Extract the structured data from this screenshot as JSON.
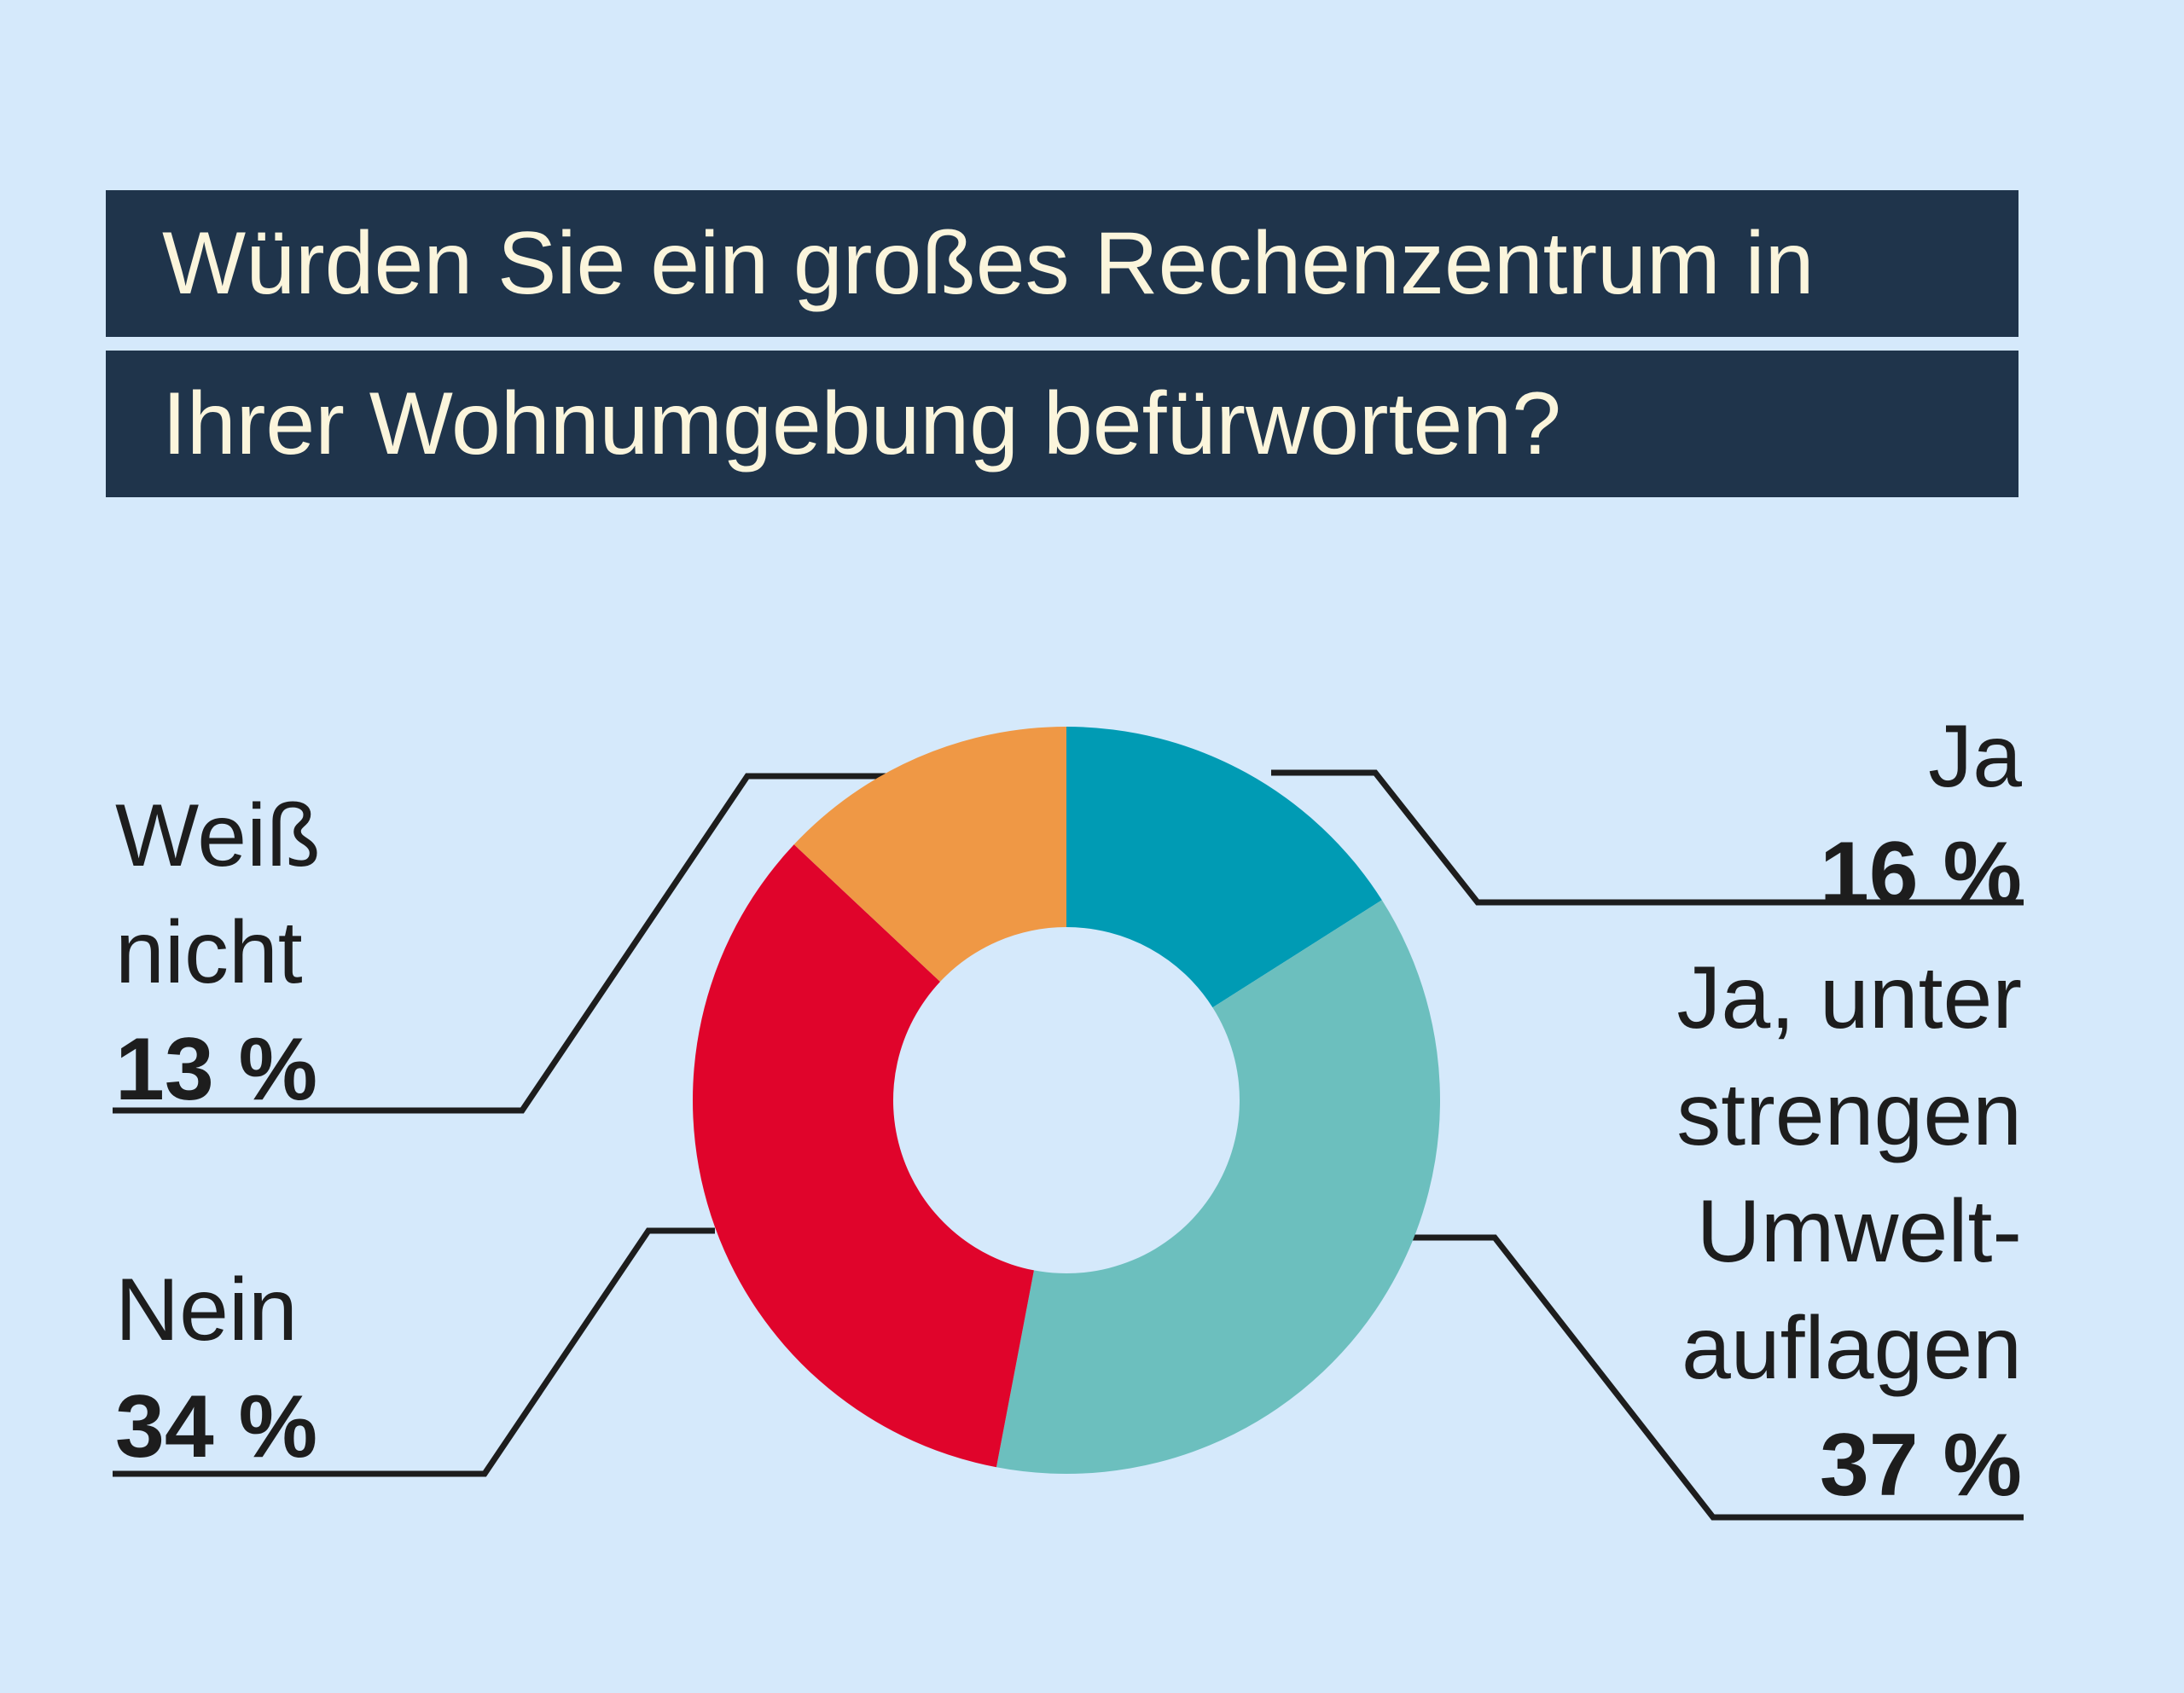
{
  "title": {
    "line1": "Würden Sie ein großes Rechenzentrum in",
    "line2": "Ihrer Wohnumgebung befürworten?"
  },
  "chart_data": {
    "type": "pie",
    "variant": "donut",
    "title": "Würden Sie ein großes Rechenzentrum in Ihrer Wohnumgebung befürworten?",
    "unit": "%",
    "slices": [
      {
        "label_lines": [
          "Ja"
        ],
        "label": "Ja",
        "value": 16,
        "value_text": "16 %",
        "color": "#009bb4"
      },
      {
        "label_lines": [
          "Ja, unter",
          "strengen",
          "Umwelt-",
          "auflagen"
        ],
        "label": "Ja, unter strengen Umwelt-auflagen",
        "value": 37,
        "value_text": "37 %",
        "color": "#6cbfbe"
      },
      {
        "label_lines": [
          "Nein"
        ],
        "label": "Nein",
        "value": 34,
        "value_text": "34 %",
        "color": "#e0042b"
      },
      {
        "label_lines": [
          "Weiß",
          "nicht"
        ],
        "label": "Weiß nicht",
        "value": 13,
        "value_text": "13 %",
        "color": "#ef9845"
      }
    ],
    "start_angle": "12 o'clock",
    "direction": "clockwise",
    "legend": "none (direct labels with leader lines)"
  },
  "colors": {
    "background": "#d5e9fb",
    "title_bar": "#1f344b",
    "title_text": "#fbf5dc",
    "leader_lines": "#1d1d1d"
  }
}
